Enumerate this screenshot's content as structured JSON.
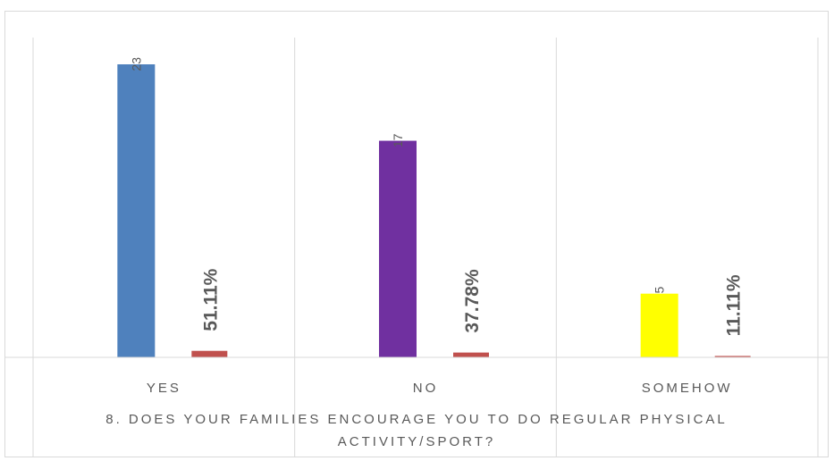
{
  "chart_data": {
    "type": "bar",
    "title": "",
    "xlabel_lines": [
      "8. DOES YOUR FAMILIES ENCOURAGE YOU TO DO REGULAR PHYSICAL",
      "ACTIVITY/SPORT?"
    ],
    "ylabel": "",
    "categories": [
      "YES",
      "NO",
      "SOMEHOW"
    ],
    "ylim": [
      0,
      25
    ],
    "grid": "vertical category separators",
    "legend": "none",
    "series": [
      {
        "values": [
          23,
          17,
          5
        ],
        "labels": [
          "23",
          "17",
          "5"
        ],
        "colors": [
          "#4f81bd",
          "#7030a0",
          "#ffff00"
        ]
      },
      {
        "values": [
          0.5111,
          0.3778,
          0.1111
        ],
        "labels": [
          "51.11%",
          "37.78%",
          "11.11%"
        ],
        "colors": [
          "#c0504d",
          "#c0504d",
          "#c0504d"
        ]
      }
    ]
  }
}
